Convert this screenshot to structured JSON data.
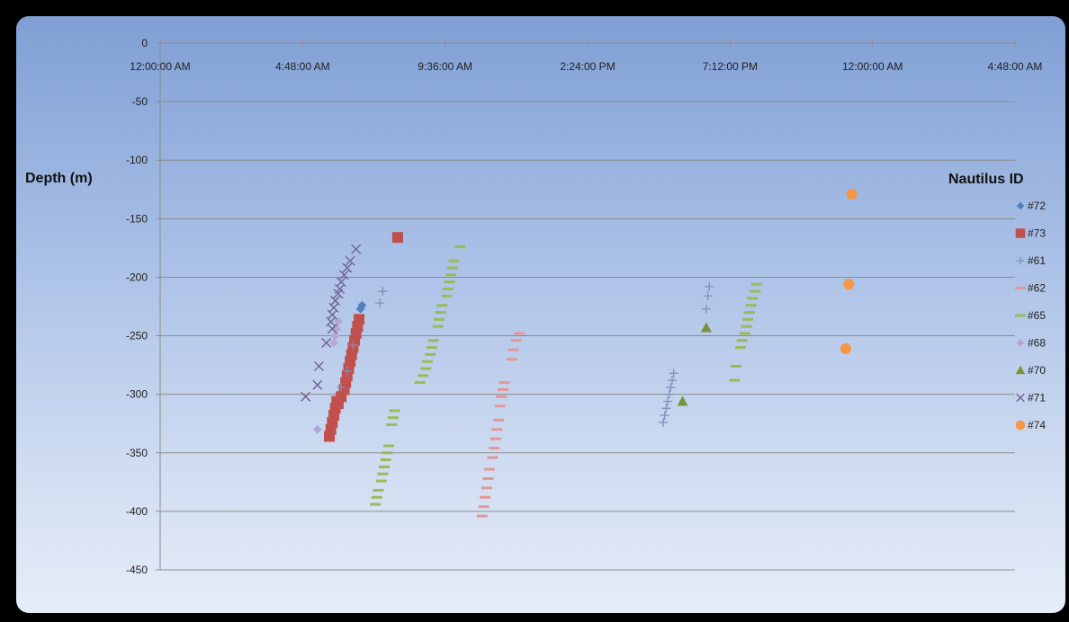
{
  "chart_data": {
    "type": "scatter",
    "title": "",
    "xlabel": "",
    "ylabel": "Depth (m)",
    "x_axis_type": "time",
    "x_ticks": [
      "12:00:00 AM",
      "4:48:00 AM",
      "9:36:00 AM",
      "2:24:00 PM",
      "7:12:00 PM",
      "12:00:00 AM",
      "4:48:00 AM"
    ],
    "x_tick_hours": [
      0,
      4.8,
      9.6,
      14.4,
      19.2,
      24,
      28.8
    ],
    "xlim_hours": [
      0,
      28.8
    ],
    "ylim": [
      -450,
      0
    ],
    "y_ticks": [
      0,
      -50,
      -100,
      -150,
      -200,
      -250,
      -300,
      -350,
      -400,
      -450
    ],
    "grid": "horizontal",
    "legend_title": "Nautilus ID",
    "legend_position": "right",
    "series": [
      {
        "name": "#72",
        "marker": "diamond",
        "color": "#4f81bd",
        "points": [
          [
            6.8,
            -224
          ],
          [
            6.75,
            -227
          ]
        ]
      },
      {
        "name": "#73",
        "marker": "square",
        "color": "#c0504d",
        "points": [
          [
            8.0,
            -166
          ],
          [
            6.7,
            -236
          ],
          [
            6.65,
            -242
          ],
          [
            6.6,
            -248
          ],
          [
            6.55,
            -254
          ],
          [
            6.5,
            -260
          ],
          [
            6.45,
            -266
          ],
          [
            6.4,
            -272
          ],
          [
            6.35,
            -278
          ],
          [
            6.3,
            -284
          ],
          [
            6.25,
            -290
          ],
          [
            6.2,
            -296
          ],
          [
            6.1,
            -302
          ],
          [
            6.0,
            -308
          ],
          [
            5.95,
            -306
          ],
          [
            5.9,
            -312
          ],
          [
            5.85,
            -318
          ],
          [
            5.8,
            -324
          ],
          [
            5.75,
            -330
          ],
          [
            5.7,
            -336
          ]
        ]
      },
      {
        "name": "#61",
        "marker": "plus",
        "color": "#7f8fb8",
        "points": [
          [
            7.5,
            -212
          ],
          [
            7.4,
            -222
          ],
          [
            6.5,
            -258
          ],
          [
            6.3,
            -280
          ],
          [
            6.1,
            -294
          ],
          [
            17.3,
            -282
          ],
          [
            17.25,
            -288
          ],
          [
            17.2,
            -294
          ],
          [
            17.15,
            -300
          ],
          [
            17.1,
            -306
          ],
          [
            17.05,
            -312
          ],
          [
            17.0,
            -318
          ],
          [
            16.95,
            -324
          ],
          [
            18.5,
            -208
          ],
          [
            18.45,
            -216
          ],
          [
            18.4,
            -227
          ]
        ]
      },
      {
        "name": "#62",
        "marker": "dash",
        "color": "#e39898",
        "points": [
          [
            12.1,
            -248
          ],
          [
            12.0,
            -254
          ],
          [
            11.9,
            -262
          ],
          [
            11.85,
            -270
          ],
          [
            11.6,
            -290
          ],
          [
            11.55,
            -296
          ],
          [
            11.5,
            -302
          ],
          [
            11.45,
            -310
          ],
          [
            11.4,
            -322
          ],
          [
            11.35,
            -330
          ],
          [
            11.3,
            -338
          ],
          [
            11.25,
            -346
          ],
          [
            11.2,
            -354
          ],
          [
            11.1,
            -364
          ],
          [
            11.05,
            -372
          ],
          [
            11.0,
            -380
          ],
          [
            10.95,
            -388
          ],
          [
            10.9,
            -396
          ],
          [
            10.85,
            -404
          ]
        ]
      },
      {
        "name": "#65",
        "marker": "dash",
        "color": "#9bbb59",
        "points": [
          [
            10.1,
            -174
          ],
          [
            9.9,
            -186
          ],
          [
            9.85,
            -192
          ],
          [
            9.8,
            -198
          ],
          [
            9.75,
            -204
          ],
          [
            9.7,
            -210
          ],
          [
            9.65,
            -216
          ],
          [
            9.5,
            -224
          ],
          [
            9.45,
            -230
          ],
          [
            9.4,
            -236
          ],
          [
            9.35,
            -242
          ],
          [
            9.2,
            -254
          ],
          [
            9.15,
            -260
          ],
          [
            9.1,
            -266
          ],
          [
            9.0,
            -272
          ],
          [
            8.95,
            -278
          ],
          [
            8.85,
            -284
          ],
          [
            8.75,
            -290
          ],
          [
            7.9,
            -314
          ],
          [
            7.85,
            -320
          ],
          [
            7.8,
            -326
          ],
          [
            7.7,
            -344
          ],
          [
            7.65,
            -350
          ],
          [
            7.6,
            -356
          ],
          [
            7.55,
            -362
          ],
          [
            7.5,
            -368
          ],
          [
            7.45,
            -374
          ],
          [
            7.35,
            -382
          ],
          [
            7.3,
            -388
          ],
          [
            7.25,
            -394
          ],
          [
            20.1,
            -206
          ],
          [
            20.05,
            -212
          ],
          [
            19.95,
            -218
          ],
          [
            19.9,
            -224
          ],
          [
            19.85,
            -230
          ],
          [
            19.8,
            -236
          ],
          [
            19.75,
            -242
          ],
          [
            19.7,
            -248
          ],
          [
            19.6,
            -254
          ],
          [
            19.55,
            -260
          ],
          [
            19.4,
            -276
          ],
          [
            19.35,
            -288
          ]
        ]
      },
      {
        "name": "#68",
        "marker": "diamond",
        "color": "#b4a7d6",
        "points": [
          [
            6.0,
            -238
          ],
          [
            5.95,
            -244
          ],
          [
            5.9,
            -250
          ],
          [
            5.85,
            -256
          ],
          [
            5.3,
            -330
          ]
        ]
      },
      {
        "name": "#70",
        "marker": "triangle",
        "color": "#77933c",
        "points": [
          [
            18.4,
            -243
          ],
          [
            17.6,
            -306
          ]
        ]
      },
      {
        "name": "#71",
        "marker": "x",
        "color": "#6e5c93",
        "points": [
          [
            6.6,
            -176
          ],
          [
            6.4,
            -186
          ],
          [
            6.3,
            -192
          ],
          [
            6.2,
            -198
          ],
          [
            6.1,
            -204
          ],
          [
            6.05,
            -210
          ],
          [
            6.0,
            -214
          ],
          [
            5.9,
            -220
          ],
          [
            5.85,
            -226
          ],
          [
            5.8,
            -232
          ],
          [
            5.75,
            -238
          ],
          [
            5.8,
            -244
          ],
          [
            5.6,
            -256
          ],
          [
            5.35,
            -276
          ],
          [
            5.3,
            -292
          ],
          [
            4.9,
            -302
          ]
        ]
      },
      {
        "name": "#74",
        "marker": "circle",
        "color": "#f79646",
        "points": [
          [
            23.3,
            -129
          ],
          [
            23.2,
            -206
          ],
          [
            23.1,
            -261
          ]
        ]
      }
    ]
  }
}
